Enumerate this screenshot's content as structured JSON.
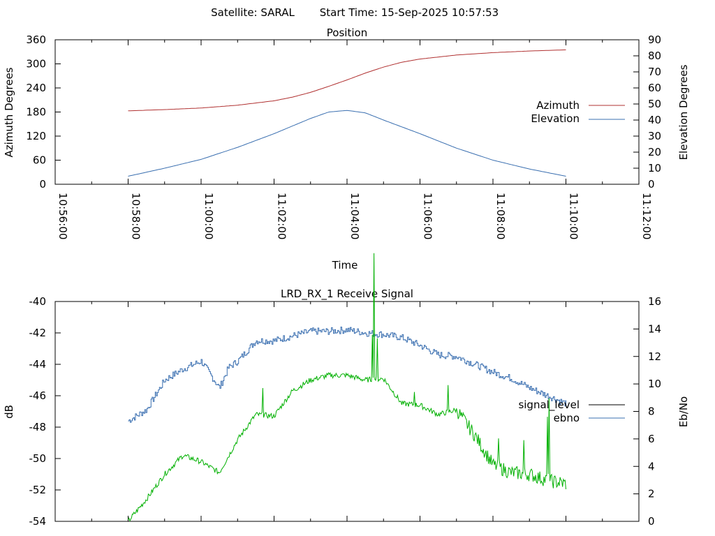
{
  "header": {
    "satellite_label": "Satellite: SARAL",
    "start_time_label": "Start Time: 15-Sep-2025 10:57:53"
  },
  "colors": {
    "azimuth": "#b03030",
    "elevation": "#3a6fb0",
    "signal_level": "#000000",
    "ebno_line": "#3a6fb0",
    "ebno_green": "#00b000"
  },
  "chart_data": [
    {
      "type": "line",
      "title": "Position",
      "xlabel": "Time",
      "ylabel": "Azimuth Degrees",
      "y2label": "Elevation Degrees",
      "xlim": [
        "10:56:00",
        "11:12:00"
      ],
      "x_ticks": [
        "10:56:00",
        "10:58:00",
        "11:00:00",
        "11:02:00",
        "11:04:00",
        "11:06:00",
        "11:08:00",
        "11:10:00",
        "11:12:00"
      ],
      "ylim": [
        0,
        360
      ],
      "y_ticks": [
        "0",
        "60",
        "120",
        "180",
        "240",
        "300",
        "360"
      ],
      "y2lim": [
        0,
        90
      ],
      "y2_ticks": [
        "0",
        "10",
        "20",
        "30",
        "40",
        "50",
        "60",
        "70",
        "80",
        "90"
      ],
      "legend_position": "right",
      "series": [
        {
          "name": "Azimuth",
          "axis": "y",
          "x": [
            "10:58:00",
            "10:59:00",
            "11:00:00",
            "11:01:00",
            "11:02:00",
            "11:02:30",
            "11:03:00",
            "11:03:30",
            "11:04:00",
            "11:04:30",
            "11:05:00",
            "11:05:30",
            "11:06:00",
            "11:07:00",
            "11:08:00",
            "11:09:00",
            "11:10:00",
            "11:10:00"
          ],
          "values": [
            183,
            186,
            190,
            197,
            208,
            217,
            229,
            244,
            260,
            277,
            292,
            304,
            312,
            322,
            328,
            332,
            335,
            337
          ]
        },
        {
          "name": "Elevation",
          "axis": "y2",
          "x": [
            "10:58:00",
            "10:59:00",
            "11:00:00",
            "11:01:00",
            "11:02:00",
            "11:03:00",
            "11:03:30",
            "11:04:00",
            "11:04:30",
            "11:05:00",
            "11:06:00",
            "11:07:00",
            "11:08:00",
            "11:09:00",
            "11:10:00"
          ],
          "values": [
            5,
            10,
            15.5,
            23,
            31.5,
            41,
            45,
            46,
            44.5,
            40,
            31.5,
            22.5,
            15,
            9.5,
            5
          ]
        }
      ]
    },
    {
      "type": "line",
      "title": "LRD_RX_1 Receive Signal",
      "ylabel": "dB",
      "y2label": "Eb/No",
      "xlim": [
        "10:56:00",
        "11:12:00"
      ],
      "ylim": [
        -54,
        -40
      ],
      "y_ticks": [
        "-40",
        "-42",
        "-44",
        "-46",
        "-48",
        "-50",
        "-52",
        "-54"
      ],
      "y2lim": [
        0,
        16
      ],
      "y2_ticks": [
        "0",
        "2",
        "4",
        "6",
        "8",
        "10",
        "12",
        "14",
        "16"
      ],
      "legend_position": "right",
      "series": [
        {
          "name": "signal_level",
          "axis": "y",
          "x": [],
          "values": []
        },
        {
          "name": "ebno",
          "axis": "y",
          "x": [
            "10:58:00",
            "10:58:30",
            "10:59:00",
            "10:59:30",
            "11:00:00",
            "11:00:30",
            "11:00:45",
            "11:01:00",
            "11:01:30",
            "11:02:00",
            "11:02:30",
            "11:03:00",
            "11:03:30",
            "11:04:00",
            "11:04:30",
            "11:05:00",
            "11:05:30",
            "11:06:00",
            "11:06:30",
            "11:07:00",
            "11:07:30",
            "11:08:00",
            "11:08:30",
            "11:09:00",
            "11:09:30",
            "11:10:00"
          ],
          "values": [
            -47.6,
            -46.9,
            -45.0,
            -44.3,
            -43.8,
            -45.5,
            -44.2,
            -43.8,
            -42.5,
            -42.5,
            -42.2,
            -41.9,
            -41.9,
            -41.8,
            -42.0,
            -42.1,
            -42.3,
            -42.8,
            -43.4,
            -43.5,
            -44.0,
            -44.5,
            -44.9,
            -45.5,
            -46.0,
            -46.5
          ]
        },
        {
          "name": "",
          "axis": "y",
          "x": [
            "10:58:00",
            "10:58:30",
            "10:59:00",
            "10:59:30",
            "11:00:00",
            "11:00:30",
            "11:01:00",
            "11:01:30",
            "11:02:00",
            "11:02:30",
            "11:03:00",
            "11:03:30",
            "11:04:00",
            "11:04:30",
            "11:05:00",
            "11:05:30",
            "11:06:00",
            "11:06:30",
            "11:07:00",
            "11:07:30",
            "11:08:00",
            "11:08:30",
            "11:09:00",
            "11:09:30",
            "11:10:00"
          ],
          "values": [
            -54.0,
            -52.6,
            -51.0,
            -49.8,
            -50.2,
            -50.9,
            -48.8,
            -47.2,
            -47.3,
            -45.7,
            -45.0,
            -44.7,
            -44.7,
            -45.0,
            -44.9,
            -46.5,
            -46.6,
            -47.2,
            -46.9,
            -48.5,
            -50.4,
            -50.9,
            -51.0,
            -51.4,
            -51.6
          ]
        }
      ]
    }
  ]
}
